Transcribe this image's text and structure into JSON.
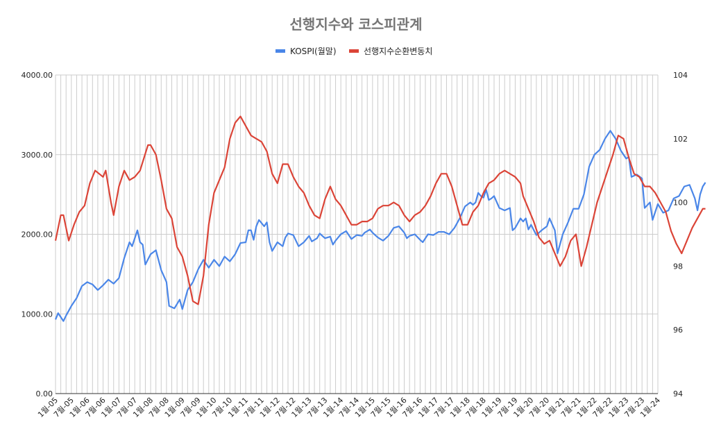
{
  "chart_data": {
    "type": "line",
    "title": "선행지수와 코스피관계",
    "legend_position": "top",
    "grid": true,
    "x_tick_labels": [
      "1월-05",
      "7월-05",
      "1월-06",
      "7월-06",
      "1월-07",
      "7월-07",
      "1월-08",
      "7월-08",
      "1월-09",
      "7월-09",
      "1월-10",
      "7월-10",
      "1월-11",
      "7월-11",
      "1월-12",
      "7월-12",
      "1월-13",
      "7월-13",
      "1월-14",
      "7월-14",
      "1월-15",
      "7월-15",
      "1월-16",
      "7월-16",
      "1월-17",
      "7월-17",
      "1월-18",
      "7월-18",
      "1월-19",
      "7월-19",
      "1월-20",
      "7월-20",
      "1월-21",
      "7월-21",
      "1월-22",
      "7월-22",
      "1월-23",
      "7월-23",
      "1월-24"
    ],
    "y_left": {
      "min": 0,
      "max": 4000,
      "ticks": [
        "0.00",
        "1000.00",
        "2000.00",
        "3000.00",
        "4000.00"
      ]
    },
    "y_right": {
      "min": 94,
      "max": 104,
      "ticks": [
        "94",
        "96",
        "98",
        "100",
        "102",
        "104"
      ]
    },
    "series": [
      {
        "name": "KOSPI(월말)",
        "color": "#4a86e8",
        "axis": "left",
        "anchors": [
          [
            0,
            930
          ],
          [
            1,
            1010
          ],
          [
            2,
            960
          ],
          [
            3,
            910
          ],
          [
            4,
            980
          ],
          [
            6,
            1100
          ],
          [
            8,
            1200
          ],
          [
            10,
            1350
          ],
          [
            12,
            1400
          ],
          [
            14,
            1370
          ],
          [
            16,
            1300
          ],
          [
            18,
            1360
          ],
          [
            20,
            1430
          ],
          [
            22,
            1380
          ],
          [
            24,
            1450
          ],
          [
            26,
            1700
          ],
          [
            28,
            1900
          ],
          [
            29,
            1850
          ],
          [
            30,
            1950
          ],
          [
            31,
            2050
          ],
          [
            32,
            1900
          ],
          [
            33,
            1870
          ],
          [
            34,
            1620
          ],
          [
            36,
            1750
          ],
          [
            38,
            1800
          ],
          [
            40,
            1550
          ],
          [
            42,
            1400
          ],
          [
            43,
            1100
          ],
          [
            45,
            1070
          ],
          [
            47,
            1180
          ],
          [
            48,
            1060
          ],
          [
            50,
            1300
          ],
          [
            52,
            1400
          ],
          [
            54,
            1560
          ],
          [
            56,
            1680
          ],
          [
            58,
            1580
          ],
          [
            60,
            1680
          ],
          [
            62,
            1600
          ],
          [
            64,
            1720
          ],
          [
            66,
            1660
          ],
          [
            68,
            1750
          ],
          [
            70,
            1890
          ],
          [
            72,
            1900
          ],
          [
            73,
            2050
          ],
          [
            74,
            2050
          ],
          [
            75,
            1930
          ],
          [
            76,
            2100
          ],
          [
            77,
            2180
          ],
          [
            79,
            2100
          ],
          [
            80,
            2150
          ],
          [
            81,
            1900
          ],
          [
            82,
            1790
          ],
          [
            84,
            1900
          ],
          [
            86,
            1850
          ],
          [
            87,
            1960
          ],
          [
            88,
            2010
          ],
          [
            90,
            1990
          ],
          [
            92,
            1850
          ],
          [
            94,
            1900
          ],
          [
            96,
            1980
          ],
          [
            97,
            1910
          ],
          [
            99,
            1950
          ],
          [
            100,
            2010
          ],
          [
            102,
            1950
          ],
          [
            104,
            1970
          ],
          [
            105,
            1870
          ],
          [
            106,
            1920
          ],
          [
            108,
            2000
          ],
          [
            110,
            2040
          ],
          [
            112,
            1940
          ],
          [
            114,
            1990
          ],
          [
            116,
            1980
          ],
          [
            117,
            2020
          ],
          [
            119,
            2060
          ],
          [
            120,
            2020
          ],
          [
            122,
            1960
          ],
          [
            124,
            1920
          ],
          [
            126,
            1980
          ],
          [
            128,
            2080
          ],
          [
            130,
            2100
          ],
          [
            132,
            2020
          ],
          [
            133,
            1950
          ],
          [
            134,
            1980
          ],
          [
            136,
            2000
          ],
          [
            138,
            1930
          ],
          [
            139,
            1900
          ],
          [
            141,
            2000
          ],
          [
            143,
            1990
          ],
          [
            145,
            2030
          ],
          [
            147,
            2030
          ],
          [
            149,
            2000
          ],
          [
            151,
            2080
          ],
          [
            153,
            2200
          ],
          [
            155,
            2350
          ],
          [
            157,
            2400
          ],
          [
            158,
            2370
          ],
          [
            159,
            2400
          ],
          [
            160,
            2520
          ],
          [
            161,
            2480
          ],
          [
            162,
            2460
          ],
          [
            163,
            2560
          ],
          [
            164,
            2430
          ],
          [
            165,
            2450
          ],
          [
            166,
            2480
          ],
          [
            168,
            2330
          ],
          [
            170,
            2300
          ],
          [
            172,
            2330
          ],
          [
            173,
            2050
          ],
          [
            174,
            2080
          ],
          [
            176,
            2200
          ],
          [
            177,
            2160
          ],
          [
            178,
            2200
          ],
          [
            179,
            2060
          ],
          [
            180,
            2120
          ],
          [
            182,
            1990
          ],
          [
            184,
            2050
          ],
          [
            186,
            2100
          ],
          [
            187,
            2200
          ],
          [
            189,
            2050
          ],
          [
            190,
            1760
          ],
          [
            192,
            2000
          ],
          [
            194,
            2150
          ],
          [
            196,
            2320
          ],
          [
            198,
            2320
          ],
          [
            200,
            2500
          ],
          [
            202,
            2850
          ],
          [
            204,
            3000
          ],
          [
            206,
            3060
          ],
          [
            208,
            3200
          ],
          [
            210,
            3300
          ],
          [
            212,
            3200
          ],
          [
            214,
            3050
          ],
          [
            216,
            2950
          ],
          [
            217,
            2970
          ],
          [
            218,
            2720
          ],
          [
            220,
            2750
          ],
          [
            222,
            2700
          ],
          [
            223,
            2330
          ],
          [
            225,
            2400
          ],
          [
            226,
            2180
          ],
          [
            228,
            2380
          ],
          [
            230,
            2270
          ],
          [
            232,
            2300
          ],
          [
            234,
            2450
          ],
          [
            236,
            2480
          ],
          [
            238,
            2600
          ],
          [
            240,
            2620
          ],
          [
            242,
            2450
          ],
          [
            243,
            2300
          ],
          [
            244,
            2500
          ],
          [
            245,
            2600
          ],
          [
            246,
            2650
          ]
        ]
      },
      {
        "name": "선행지수순환변동치",
        "color": "#db4437",
        "axis": "right",
        "anchors": [
          [
            0,
            98.8
          ],
          [
            2,
            99.6
          ],
          [
            3,
            99.6
          ],
          [
            5,
            98.8
          ],
          [
            7,
            99.3
          ],
          [
            9,
            99.7
          ],
          [
            11,
            99.9
          ],
          [
            13,
            100.6
          ],
          [
            15,
            101.0
          ],
          [
            18,
            100.8
          ],
          [
            19,
            101.0
          ],
          [
            21,
            100.0
          ],
          [
            22,
            99.6
          ],
          [
            24,
            100.5
          ],
          [
            26,
            101.0
          ],
          [
            28,
            100.7
          ],
          [
            30,
            100.8
          ],
          [
            32,
            101.0
          ],
          [
            35,
            101.8
          ],
          [
            36,
            101.8
          ],
          [
            38,
            101.5
          ],
          [
            40,
            100.7
          ],
          [
            42,
            99.8
          ],
          [
            44,
            99.5
          ],
          [
            46,
            98.6
          ],
          [
            48,
            98.3
          ],
          [
            50,
            97.7
          ],
          [
            52,
            96.9
          ],
          [
            54,
            96.8
          ],
          [
            56,
            97.7
          ],
          [
            58,
            99.3
          ],
          [
            60,
            100.3
          ],
          [
            62,
            100.7
          ],
          [
            64,
            101.1
          ],
          [
            66,
            102.0
          ],
          [
            68,
            102.5
          ],
          [
            70,
            102.7
          ],
          [
            72,
            102.4
          ],
          [
            74,
            102.1
          ],
          [
            76,
            102.0
          ],
          [
            78,
            101.9
          ],
          [
            80,
            101.6
          ],
          [
            82,
            100.9
          ],
          [
            84,
            100.6
          ],
          [
            86,
            101.2
          ],
          [
            88,
            101.2
          ],
          [
            90,
            100.8
          ],
          [
            92,
            100.5
          ],
          [
            94,
            100.3
          ],
          [
            96,
            99.9
          ],
          [
            98,
            99.6
          ],
          [
            100,
            99.5
          ],
          [
            102,
            100.1
          ],
          [
            104,
            100.5
          ],
          [
            106,
            100.1
          ],
          [
            108,
            99.9
          ],
          [
            110,
            99.6
          ],
          [
            112,
            99.3
          ],
          [
            114,
            99.3
          ],
          [
            116,
            99.4
          ],
          [
            118,
            99.4
          ],
          [
            120,
            99.5
          ],
          [
            122,
            99.8
          ],
          [
            124,
            99.9
          ],
          [
            126,
            99.9
          ],
          [
            128,
            100.0
          ],
          [
            130,
            99.9
          ],
          [
            132,
            99.6
          ],
          [
            134,
            99.4
          ],
          [
            136,
            99.6
          ],
          [
            138,
            99.7
          ],
          [
            140,
            99.9
          ],
          [
            142,
            100.2
          ],
          [
            144,
            100.6
          ],
          [
            146,
            100.9
          ],
          [
            148,
            100.9
          ],
          [
            150,
            100.5
          ],
          [
            152,
            99.9
          ],
          [
            154,
            99.3
          ],
          [
            156,
            99.3
          ],
          [
            158,
            99.7
          ],
          [
            160,
            99.9
          ],
          [
            162,
            100.3
          ],
          [
            164,
            100.6
          ],
          [
            166,
            100.7
          ],
          [
            168,
            100.9
          ],
          [
            170,
            101.0
          ],
          [
            172,
            100.9
          ],
          [
            174,
            100.8
          ],
          [
            176,
            100.6
          ],
          [
            177,
            100.2
          ],
          [
            179,
            99.8
          ],
          [
            181,
            99.4
          ],
          [
            183,
            98.9
          ],
          [
            185,
            98.7
          ],
          [
            187,
            98.8
          ],
          [
            189,
            98.4
          ],
          [
            191,
            98.0
          ],
          [
            193,
            98.3
          ],
          [
            195,
            98.8
          ],
          [
            197,
            99.0
          ],
          [
            199,
            98.0
          ],
          [
            201,
            98.6
          ],
          [
            203,
            99.3
          ],
          [
            205,
            100.0
          ],
          [
            207,
            100.5
          ],
          [
            209,
            101.0
          ],
          [
            211,
            101.5
          ],
          [
            213,
            102.1
          ],
          [
            215,
            102.0
          ],
          [
            217,
            101.4
          ],
          [
            219,
            100.9
          ],
          [
            221,
            100.8
          ],
          [
            223,
            100.5
          ],
          [
            225,
            100.5
          ],
          [
            227,
            100.3
          ],
          [
            229,
            100.0
          ],
          [
            231,
            99.7
          ],
          [
            233,
            99.1
          ],
          [
            235,
            98.7
          ],
          [
            237,
            98.4
          ],
          [
            239,
            98.8
          ],
          [
            241,
            99.2
          ],
          [
            243,
            99.5
          ],
          [
            245,
            99.8
          ],
          [
            246,
            99.8
          ]
        ]
      }
    ]
  }
}
